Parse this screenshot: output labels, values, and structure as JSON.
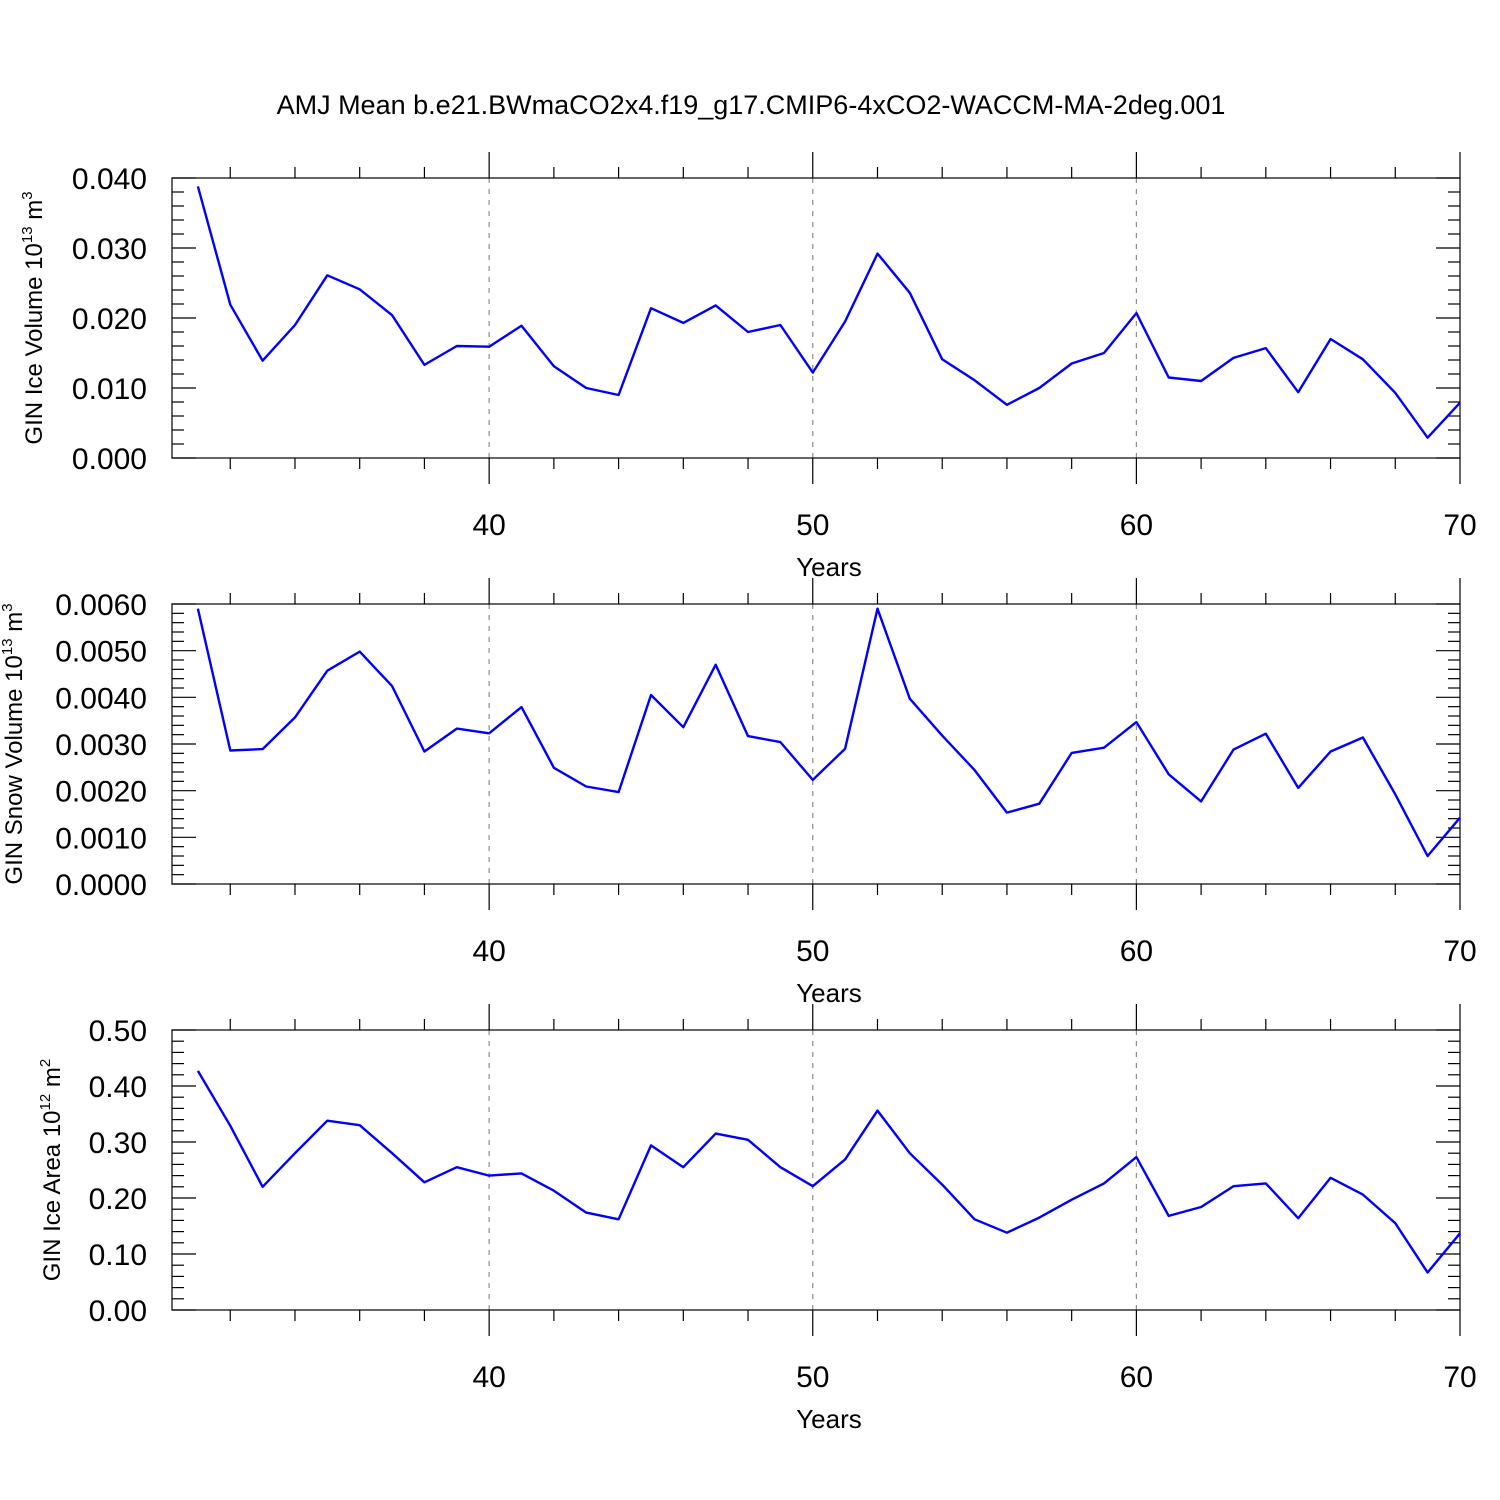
{
  "title": "AMJ Mean b.e21.BWmaCO2x4.f19_g17.CMIP6-4xCO2-WACCM-MA-2deg.001",
  "line_color": "#0000ff",
  "chart_data": [
    {
      "type": "line",
      "title": "AMJ Mean b.e21.BWmaCO2x4.f19_g17.CMIP6-4xCO2-WACCM-MA-2deg.001",
      "xlabel": "Years",
      "ylabel_main": "GIN Ice Volume 10",
      "ylabel_exp": "13",
      "ylabel_unit": " m",
      "ylabel_unit_exp": "3",
      "xlim": [
        30.2,
        70
      ],
      "ylim": [
        0,
        0.04
      ],
      "x_ticks": [
        40,
        50,
        60,
        70
      ],
      "x_tick_labels": [
        "40",
        "50",
        "60",
        "70"
      ],
      "y_ticks": [
        0,
        0.01,
        0.02,
        0.03,
        0.04
      ],
      "y_tick_labels": [
        "0.000",
        "0.010",
        "0.020",
        "0.030",
        "0.040"
      ],
      "grid_x": [
        40,
        50,
        60
      ],
      "x": [
        31,
        32,
        33,
        34,
        35,
        36,
        37,
        38,
        39,
        40,
        41,
        42,
        43,
        44,
        45,
        46,
        47,
        48,
        49,
        50,
        51,
        52,
        53,
        54,
        55,
        56,
        57,
        58,
        59,
        60,
        61,
        62,
        63,
        64,
        65,
        66,
        67,
        68,
        69,
        70
      ],
      "values": [
        0.0388,
        0.0219,
        0.0139,
        0.019,
        0.0261,
        0.0241,
        0.0204,
        0.0133,
        0.016,
        0.0159,
        0.0189,
        0.0131,
        0.01,
        0.009,
        0.0214,
        0.0193,
        0.0218,
        0.018,
        0.019,
        0.0122,
        0.0195,
        0.0292,
        0.0236,
        0.0141,
        0.0111,
        0.0076,
        0.01,
        0.0135,
        0.015,
        0.0207,
        0.0115,
        0.011,
        0.0143,
        0.0157,
        0.0094,
        0.017,
        0.0141,
        0.0093,
        0.0029,
        0.0079
      ]
    },
    {
      "type": "line",
      "xlabel": "Years",
      "ylabel_main": "GIN Snow Volume 10",
      "ylabel_exp": "13",
      "ylabel_unit": " m",
      "ylabel_unit_exp": "3",
      "xlim": [
        30.2,
        70
      ],
      "ylim": [
        0,
        0.006
      ],
      "x_ticks": [
        40,
        50,
        60,
        70
      ],
      "x_tick_labels": [
        "40",
        "50",
        "60",
        "70"
      ],
      "y_ticks": [
        0,
        0.001,
        0.002,
        0.003,
        0.004,
        0.005,
        0.006
      ],
      "y_tick_labels": [
        "0.0000",
        "0.0010",
        "0.0020",
        "0.0030",
        "0.0040",
        "0.0050",
        "0.0060"
      ],
      "grid_x": [
        40,
        50,
        60
      ],
      "x": [
        31,
        32,
        33,
        34,
        35,
        36,
        37,
        38,
        39,
        40,
        41,
        42,
        43,
        44,
        45,
        46,
        47,
        48,
        49,
        50,
        51,
        52,
        53,
        54,
        55,
        56,
        57,
        58,
        59,
        60,
        61,
        62,
        63,
        64,
        65,
        66,
        67,
        68,
        69,
        70
      ],
      "values": [
        0.0059,
        0.00286,
        0.00289,
        0.00357,
        0.00457,
        0.00498,
        0.00424,
        0.00284,
        0.00333,
        0.00323,
        0.00379,
        0.00249,
        0.00209,
        0.00197,
        0.00405,
        0.00336,
        0.0047,
        0.00317,
        0.00304,
        0.00223,
        0.0029,
        0.0059,
        0.00397,
        0.00318,
        0.00244,
        0.00153,
        0.00172,
        0.00281,
        0.00292,
        0.00347,
        0.00235,
        0.00177,
        0.00288,
        0.00322,
        0.00206,
        0.00284,
        0.00314,
        0.00192,
        0.0006,
        0.00142
      ]
    },
    {
      "type": "line",
      "xlabel": "Years",
      "ylabel_main": "GIN Ice Area 10",
      "ylabel_exp": "12",
      "ylabel_unit": " m",
      "ylabel_unit_exp": "2",
      "xlim": [
        30.2,
        70
      ],
      "ylim": [
        0,
        0.5
      ],
      "x_ticks": [
        40,
        50,
        60,
        70
      ],
      "x_tick_labels": [
        "40",
        "50",
        "60",
        "70"
      ],
      "y_ticks": [
        0,
        0.1,
        0.2,
        0.3,
        0.4,
        0.5
      ],
      "y_tick_labels": [
        "0.00",
        "0.10",
        "0.20",
        "0.30",
        "0.40",
        "0.50"
      ],
      "grid_x": [
        40,
        50,
        60
      ],
      "x": [
        31,
        32,
        33,
        34,
        35,
        36,
        37,
        38,
        39,
        40,
        41,
        42,
        43,
        44,
        45,
        46,
        47,
        48,
        49,
        50,
        51,
        52,
        53,
        54,
        55,
        56,
        57,
        58,
        59,
        60,
        61,
        62,
        63,
        64,
        65,
        66,
        67,
        68,
        69,
        70
      ],
      "values": [
        0.427,
        0.329,
        0.22,
        0.28,
        0.338,
        0.33,
        0.28,
        0.228,
        0.255,
        0.24,
        0.244,
        0.213,
        0.174,
        0.162,
        0.294,
        0.255,
        0.315,
        0.304,
        0.255,
        0.221,
        0.269,
        0.356,
        0.28,
        0.224,
        0.162,
        0.138,
        0.165,
        0.197,
        0.226,
        0.273,
        0.168,
        0.184,
        0.221,
        0.226,
        0.164,
        0.236,
        0.206,
        0.155,
        0.067,
        0.137
      ]
    }
  ]
}
